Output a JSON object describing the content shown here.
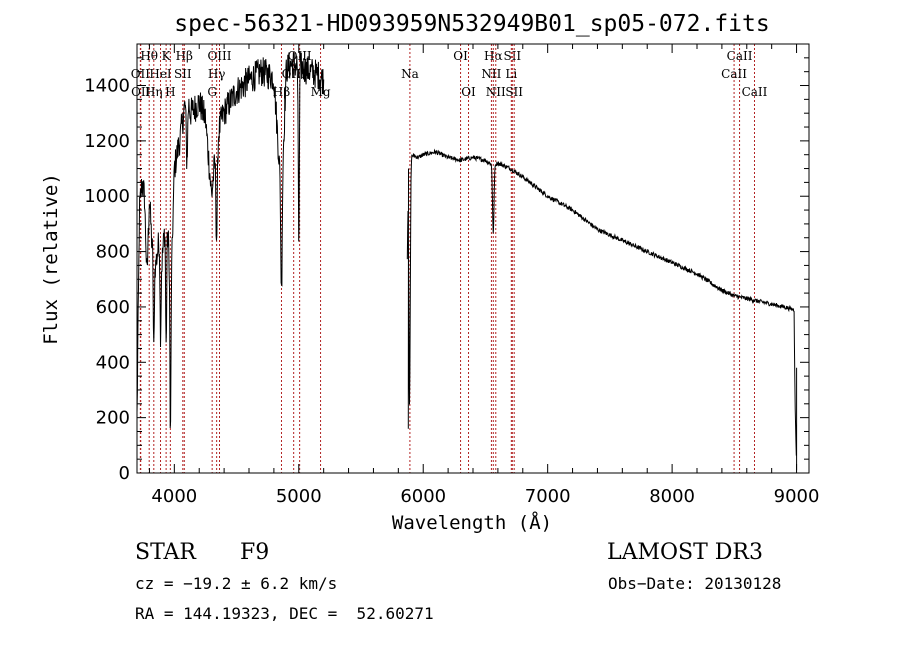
{
  "chart_data": {
    "type": "line",
    "title": "spec-56321-HD093959N532949B01_sp05-072.fits",
    "xlabel": "Wavelength (Å)",
    "ylabel": "Flux (relative)",
    "xlim": [
      3700,
      9100
    ],
    "ylim": [
      0,
      1550
    ],
    "xticks": [
      4000,
      5000,
      6000,
      7000,
      8000,
      9000
    ],
    "yticks": [
      0,
      200,
      400,
      600,
      800,
      1000,
      1200,
      1400
    ],
    "xtick_labels": [
      "4000",
      "5000",
      "6000",
      "7000",
      "8000",
      "9000"
    ],
    "ytick_labels": [
      "0",
      "200",
      "400",
      "600",
      "800",
      "1000",
      "1200",
      "1400"
    ],
    "gap": [
      5200,
      5870
    ],
    "spectrum_anchors": {
      "x": [
        3700,
        3720,
        3740,
        3760,
        3780,
        3800,
        3820,
        3850,
        3880,
        3900,
        3930,
        3960,
        3970,
        4000,
        4050,
        4101,
        4130,
        4200,
        4250,
        4300,
        4340,
        4380,
        4420,
        4500,
        4600,
        4700,
        4800,
        4861,
        4900,
        4950,
        5000,
        5050,
        5100,
        5150,
        5200,
        5870,
        5880,
        5900,
        5960,
        6000,
        6100,
        6200,
        6300,
        6400,
        6500,
        6563,
        6600,
        6700,
        6800,
        7000,
        7200,
        7400,
        7600,
        7800,
        8000,
        8200,
        8400,
        8500,
        8600,
        8700,
        8800,
        8900,
        8980,
        8990,
        9000
      ],
      "flux": [
        200,
        950,
        1050,
        1000,
        700,
        1000,
        820,
        750,
        850,
        760,
        920,
        800,
        600,
        1100,
        1220,
        1380,
        1300,
        1340,
        1280,
        1000,
        1200,
        1280,
        1320,
        1380,
        1420,
        1450,
        1430,
        1000,
        1460,
        1480,
        1470,
        1460,
        1450,
        1440,
        1420,
        700,
        1130,
        1150,
        1140,
        1150,
        1160,
        1140,
        1130,
        1140,
        1130,
        1110,
        1120,
        1100,
        1070,
        1000,
        950,
        880,
        840,
        800,
        760,
        720,
        660,
        640,
        630,
        620,
        610,
        600,
        590,
        200,
        30
      ]
    },
    "dips": [
      {
        "x": 3835,
        "depth": 350,
        "width": 6
      },
      {
        "x": 3889,
        "depth": 300,
        "width": 6
      },
      {
        "x": 3934,
        "depth": 450,
        "width": 6
      },
      {
        "x": 3968,
        "depth": 500,
        "width": 6
      },
      {
        "x": 4101,
        "depth": 250,
        "width": 8
      },
      {
        "x": 4340,
        "depth": 350,
        "width": 8
      },
      {
        "x": 4861,
        "depth": 350,
        "width": 8
      },
      {
        "x": 5000,
        "depth": 650,
        "width": 6
      },
      {
        "x": 5890,
        "depth": 900,
        "width": 8
      },
      {
        "x": 6563,
        "depth": 250,
        "width": 8
      }
    ],
    "emission_lines": [
      {
        "name": "Hθ",
        "x": 3798,
        "row": 0
      },
      {
        "name": "K",
        "x": 3934,
        "row": 0
      },
      {
        "name": "Hβ",
        "x": 4080,
        "row": 0
      },
      {
        "name": "OIII",
        "x": 4363,
        "row": 0
      },
      {
        "name": "OIII",
        "x": 5007,
        "row": 0
      },
      {
        "name": "OI",
        "x": 6300,
        "row": 0
      },
      {
        "name": "Hα",
        "x": 6563,
        "row": 0
      },
      {
        "name": "SII",
        "x": 6716,
        "row": 0
      },
      {
        "name": "CaII",
        "x": 8542,
        "row": 0
      },
      {
        "name": "OII",
        "x": 3727,
        "row": 1
      },
      {
        "name": "HeI",
        "x": 3889,
        "row": 1
      },
      {
        "name": "SII",
        "x": 4068,
        "row": 1
      },
      {
        "name": "Hγ",
        "x": 4340,
        "row": 1
      },
      {
        "name": "OIII",
        "x": 4959,
        "row": 1
      },
      {
        "name": "Na",
        "x": 5893,
        "row": 1
      },
      {
        "name": "NII",
        "x": 6548,
        "row": 1
      },
      {
        "name": "Li",
        "x": 6708,
        "row": 1
      },
      {
        "name": "CaII",
        "x": 8498,
        "row": 1
      },
      {
        "name": "OII",
        "x": 3730,
        "row": 2
      },
      {
        "name": "Hη",
        "x": 3835,
        "row": 2
      },
      {
        "name": "H",
        "x": 3968,
        "row": 2
      },
      {
        "name": "G",
        "x": 4304,
        "row": 2
      },
      {
        "name": "Hβ",
        "x": 4861,
        "row": 2
      },
      {
        "name": "Mg",
        "x": 5175,
        "row": 2
      },
      {
        "name": "OI",
        "x": 6364,
        "row": 2
      },
      {
        "name": "NII",
        "x": 6583,
        "row": 2
      },
      {
        "name": "SII",
        "x": 6731,
        "row": 2
      },
      {
        "name": "CaII",
        "x": 8662,
        "row": 2
      }
    ],
    "marker_line_color": "#b22222"
  },
  "info": {
    "class_label": "STAR",
    "subclass": "F9",
    "survey": "LAMOST DR3",
    "cz": "cz = −19.2 ± 6.2 km/s",
    "obs_date": "Obs−Date: 20130128",
    "coords": "RA = 144.19323, DEC =  52.60271"
  }
}
